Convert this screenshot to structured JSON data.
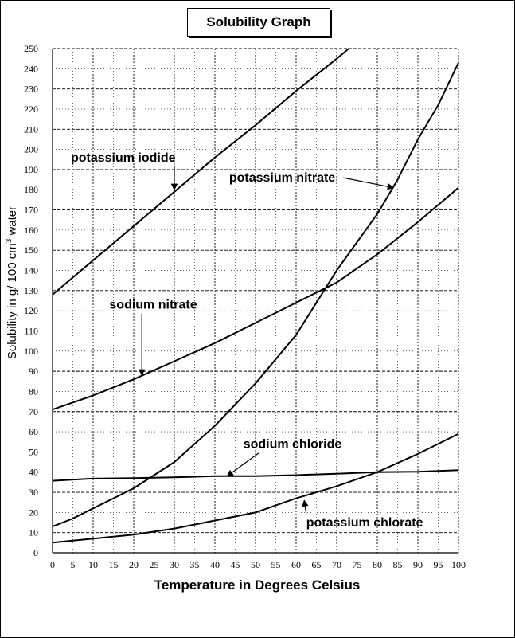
{
  "chart_data": {
    "type": "line",
    "title": "Solubility Graph",
    "xlabel": "Temperature in Degrees Celsius",
    "ylabel": "Solubility in g/ 100 cm³ water",
    "xlim": [
      0,
      100
    ],
    "ylim": [
      0,
      250
    ],
    "xticks": [
      0,
      5,
      10,
      15,
      20,
      25,
      30,
      35,
      40,
      45,
      50,
      55,
      60,
      65,
      70,
      75,
      80,
      85,
      90,
      95,
      100
    ],
    "yticks": [
      0,
      10,
      20,
      30,
      40,
      50,
      60,
      70,
      80,
      90,
      100,
      110,
      120,
      130,
      140,
      150,
      160,
      170,
      180,
      190,
      200,
      210,
      220,
      230,
      240,
      250
    ],
    "grid": true,
    "series": [
      {
        "name": "potassium iodide",
        "x": [
          0,
          10,
          20,
          30,
          40,
          50,
          60,
          70,
          73
        ],
        "y": [
          128,
          145,
          162,
          179,
          196,
          212,
          229,
          245,
          250
        ],
        "label_x": 4.5,
        "label_y": 194,
        "arrow_to": [
          30,
          180
        ]
      },
      {
        "name": "potassium nitrate",
        "x": [
          0,
          5,
          10,
          20,
          30,
          40,
          50,
          60,
          70,
          80,
          85,
          90,
          95,
          100
        ],
        "y": [
          13,
          17,
          22,
          32,
          45,
          63,
          84,
          108,
          140,
          168,
          185,
          205,
          222,
          243
        ],
        "label_x": 43.5,
        "label_y": 184,
        "arrow_to": [
          84,
          181
        ]
      },
      {
        "name": "sodium nitrate",
        "x": [
          0,
          10,
          20,
          30,
          40,
          50,
          60,
          70,
          80,
          90,
          100
        ],
        "y": [
          71,
          78,
          86,
          95,
          104,
          114,
          124,
          134,
          148,
          164,
          181
        ],
        "label_x": 14,
        "label_y": 121,
        "arrow_to": [
          22,
          88
        ]
      },
      {
        "name": "sodium chloride",
        "x": [
          0,
          10,
          20,
          30,
          40,
          50,
          60,
          70,
          80,
          90,
          100
        ],
        "y": [
          35.7,
          36.8,
          37,
          37.4,
          38,
          38,
          38.5,
          39.2,
          40,
          40.2,
          41
        ],
        "label_x": 47,
        "label_y": 52,
        "arrow_to": [
          43,
          38
        ]
      },
      {
        "name": "potassium chlorate",
        "x": [
          0,
          10,
          20,
          30,
          40,
          50,
          60,
          70,
          80,
          90,
          100
        ],
        "y": [
          5,
          7,
          9,
          12,
          16,
          20,
          27,
          33,
          40,
          49,
          59
        ],
        "label_x": 62.5,
        "label_y": 13,
        "arrow_to": [
          62,
          26
        ]
      }
    ]
  }
}
